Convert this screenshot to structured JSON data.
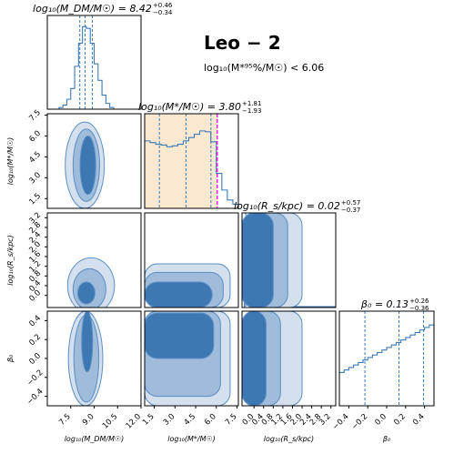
{
  "galaxy_name": "Leo − 2",
  "mass_limit_text": "log₁₀(M*⁹⁵%/M☉) < 6.06",
  "colors": {
    "contour_outer": "#d4e0ee",
    "contour_mid": "#9fbcdb",
    "contour_inner": "#3e78b3",
    "line": "#3a7ab8",
    "edge": "#5b8ec4",
    "prior_band": "#fbe8d0",
    "limit_line": "#ff00ff"
  },
  "chart_data": [
    {
      "type": "histogram",
      "panel": "logM_DM",
      "title": "log₁₀(M_DM/M☉) = 8.42 +0.46 −0.34",
      "title_main": "log₁₀(M_DM/M☉) = 8.42",
      "title_plus": "+0.46",
      "title_minus": "−0.34",
      "xlim": [
        6.0,
        12.0
      ],
      "xticks": [
        "7.5",
        "9.0",
        "10.5",
        "12.0"
      ],
      "xlabel": "log₁₀(M_DM/M☉)",
      "bin_edges": [
        6.75,
        7.0,
        7.25,
        7.5,
        7.75,
        8.0,
        8.25,
        8.5,
        8.75,
        9.0,
        9.25,
        9.5,
        9.75,
        10.0,
        10.25
      ],
      "values": [
        0.02,
        0.05,
        0.12,
        0.25,
        0.52,
        0.8,
        1.0,
        0.98,
        0.8,
        0.55,
        0.35,
        0.17,
        0.07,
        0.02
      ],
      "quantiles": [
        8.08,
        8.42,
        8.88
      ]
    },
    {
      "type": "histogram",
      "panel": "logMstar",
      "title": "log₁₀(M*/M☉) = 3.80 +1.81 −1.93",
      "title_main": "log₁₀(M*/M☉) = 3.80",
      "title_plus": "+1.81",
      "title_minus": "−1.93",
      "xlim": [
        0.8,
        7.6
      ],
      "xticks": [
        "1.5",
        "3.0",
        "4.5",
        "6.0",
        "7.5"
      ],
      "xlabel": "log₁₀(M*/M☉)",
      "prior_band": [
        0.8,
        6.06
      ],
      "upper_limit_95": 6.06,
      "bin_edges": [
        0.8,
        1.2,
        1.6,
        2.0,
        2.4,
        2.8,
        3.2,
        3.6,
        4.0,
        4.4,
        4.8,
        5.2,
        5.6,
        6.0,
        6.4,
        6.8,
        7.2,
        7.6
      ],
      "values": [
        0.81,
        0.79,
        0.77,
        0.76,
        0.74,
        0.75,
        0.77,
        0.81,
        0.85,
        0.89,
        0.93,
        0.92,
        0.8,
        0.42,
        0.22,
        0.1,
        0.05
      ],
      "quantiles": [
        1.87,
        3.8,
        5.61
      ]
    },
    {
      "type": "histogram",
      "panel": "logRs",
      "title": "log₁₀(R_s/kpc) = 0.02 +0.57 −0.37",
      "title_main": "log₁₀(R_s/kpc) = 0.02",
      "title_plus": "+0.57",
      "title_minus": "−0.37",
      "xlim": [
        -0.5,
        3.4
      ],
      "xticks": [
        "0.0",
        "0.4",
        "0.8",
        "1.2",
        "1.6",
        "2.0",
        "2.4",
        "2.8",
        "3.2"
      ],
      "xlabel": "log₁₀(R_s/kpc)",
      "bin_edges": [
        -0.4,
        -0.3,
        -0.2,
        -0.1,
        0.0,
        0.1,
        0.2,
        0.3,
        0.4,
        0.5,
        0.6,
        0.7,
        0.8,
        0.9,
        1.0,
        1.1,
        1.2,
        3.4
      ],
      "values": [
        1.0,
        0.96,
        0.9,
        0.85,
        0.78,
        0.7,
        0.62,
        0.55,
        0.46,
        0.38,
        0.3,
        0.22,
        0.14,
        0.09,
        0.05,
        0.03,
        0.01
      ],
      "quantiles": [
        -0.35,
        0.02,
        0.59
      ]
    },
    {
      "type": "histogram",
      "panel": "beta0",
      "title": "β₀ = 0.13 +0.26 −0.36",
      "title_main": "β₀ = 0.13",
      "title_plus": "+0.26",
      "title_minus": "−0.36",
      "xlim": [
        -0.5,
        0.5
      ],
      "xticks": [
        "−0.4",
        "−0.2",
        "0.0",
        "0.2",
        "0.4"
      ],
      "xlabel": "β₀",
      "bin_edges": [
        -0.5,
        -0.45,
        -0.4,
        -0.35,
        -0.3,
        -0.25,
        -0.2,
        -0.15,
        -0.1,
        -0.05,
        0.0,
        0.05,
        0.1,
        0.15,
        0.2,
        0.25,
        0.3,
        0.35,
        0.4,
        0.45,
        0.5
      ],
      "values": [
        0.4,
        0.43,
        0.46,
        0.49,
        0.52,
        0.55,
        0.58,
        0.61,
        0.64,
        0.67,
        0.7,
        0.73,
        0.76,
        0.79,
        0.82,
        0.85,
        0.88,
        0.91,
        0.94,
        0.97
      ],
      "quantiles": [
        -0.23,
        0.13,
        0.39
      ]
    },
    {
      "type": "contour",
      "panel": "logMstar_vs_logM_DM",
      "ylabel": "log₁₀(M*/M☉)",
      "yticks": [
        "1.5",
        "3.0",
        "4.5",
        "6.0",
        "7.5"
      ],
      "ylim": [
        0.8,
        7.6
      ],
      "levels": [
        {
          "center": [
            8.4,
            3.9
          ],
          "half_width": [
            1.25,
            3.1
          ]
        },
        {
          "center": [
            8.5,
            3.9
          ],
          "half_width": [
            0.85,
            2.6
          ]
        },
        {
          "center": [
            8.6,
            3.9
          ],
          "half_width": [
            0.5,
            2.1
          ]
        }
      ]
    },
    {
      "type": "contour",
      "panel": "logRs_vs_logM_DM",
      "ylabel": "log₁₀(R_s/kpc)",
      "yticks": [
        "0.0",
        "0.4",
        "0.8",
        "1.2",
        "1.6",
        "2.0",
        "2.4",
        "2.8",
        "3.2"
      ],
      "ylim": [
        -0.5,
        3.4
      ],
      "levels": [
        {
          "center": [
            8.8,
            0.4
          ],
          "half_width": [
            1.5,
            1.15
          ]
        },
        {
          "center": [
            8.7,
            0.25
          ],
          "half_width": [
            1.05,
            0.85
          ]
        },
        {
          "center": [
            8.5,
            0.1
          ],
          "half_width": [
            0.55,
            0.45
          ]
        }
      ]
    },
    {
      "type": "contour",
      "panel": "logRs_vs_logMstar",
      "levels": [
        {
          "x_range": [
            0.8,
            7.0
          ],
          "y_range": [
            -0.5,
            1.3
          ]
        },
        {
          "x_range": [
            0.8,
            6.5
          ],
          "y_range": [
            -0.5,
            0.95
          ]
        },
        {
          "x_range": [
            0.8,
            5.7
          ],
          "y_range": [
            -0.5,
            0.55
          ]
        }
      ]
    },
    {
      "type": "contour",
      "panel": "logRs_vs_logRs_identity",
      "levels": [
        {
          "x_range": [
            -0.5,
            2.0
          ],
          "y_range": [
            -0.5,
            3.4
          ]
        },
        {
          "x_range": [
            -0.5,
            1.4
          ],
          "y_range": [
            -0.5,
            3.4
          ]
        },
        {
          "x_range": [
            -0.5,
            0.8
          ],
          "y_range": [
            -0.5,
            3.4
          ]
        }
      ]
    },
    {
      "type": "contour",
      "panel": "beta0_vs_logM_DM",
      "ylabel": "β₀",
      "yticks": [
        "−0.4",
        "−0.2",
        "0.0",
        "0.2",
        "0.4"
      ],
      "ylim": [
        -0.5,
        0.5
      ],
      "levels": [
        {
          "center": [
            8.45,
            0.0
          ],
          "half_width": [
            1.1,
            0.5
          ]
        },
        {
          "center": [
            8.5,
            0.0
          ],
          "half_width": [
            0.8,
            0.46
          ]
        },
        {
          "center": [
            8.55,
            0.18
          ],
          "half_width": [
            0.35,
            0.32
          ]
        }
      ]
    },
    {
      "type": "contour",
      "panel": "beta0_vs_logMstar",
      "levels": [
        {
          "x_range": [
            0.8,
            7.0
          ],
          "y_range": [
            -0.5,
            0.5
          ]
        },
        {
          "x_range": [
            0.8,
            6.3
          ],
          "y_range": [
            -0.4,
            0.5
          ]
        },
        {
          "x_range": [
            0.8,
            5.8
          ],
          "y_range": [
            0.0,
            0.48
          ]
        }
      ]
    },
    {
      "type": "contour",
      "panel": "beta0_vs_logRs",
      "levels": [
        {
          "x_range": [
            -0.5,
            2.0
          ],
          "y_range": [
            -0.5,
            0.5
          ]
        },
        {
          "x_range": [
            -0.5,
            1.1
          ],
          "y_range": [
            -0.5,
            0.5
          ]
        },
        {
          "x_range": [
            -0.5,
            0.5
          ],
          "y_range": [
            -0.5,
            0.5
          ]
        }
      ]
    }
  ]
}
